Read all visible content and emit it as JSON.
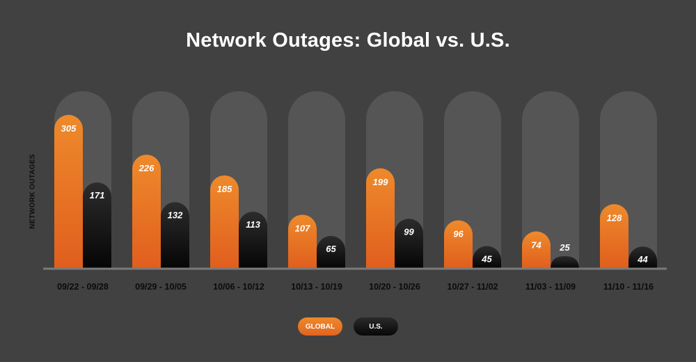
{
  "colors": {
    "background": "#414141",
    "track": "#555555",
    "global_top": "#ee8a2b",
    "global_bottom": "#e05e1e",
    "us_top": "#2c2c2c",
    "us_bottom": "#050505",
    "baseline": "#7a7a7a"
  },
  "chart_data": {
    "type": "bar",
    "title": "Network Outages: Global vs. U.S.",
    "ylabel": "NETWORK OUTAGES",
    "xlabel": "",
    "categories": [
      "09/22 - 09/28",
      "09/29 - 10/05",
      "10/06 - 10/12",
      "10/13 - 10/19",
      "10/20 - 10/26",
      "10/27 - 11/02",
      "11/03 - 11/09",
      "11/10 - 11/16"
    ],
    "series": [
      {
        "name": "GLOBAL",
        "values": [
          305,
          226,
          185,
          107,
          199,
          96,
          74,
          128
        ]
      },
      {
        "name": "U.S.",
        "values": [
          171,
          132,
          113,
          65,
          99,
          45,
          25,
          44
        ]
      }
    ],
    "ylim": [
      0,
      305
    ],
    "grid": false,
    "legend_position": "bottom-center",
    "data_labels": true
  }
}
